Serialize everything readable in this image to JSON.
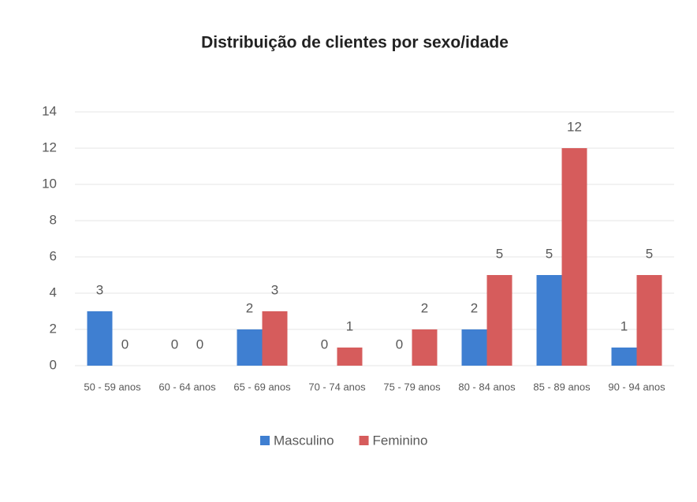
{
  "chart_data": {
    "type": "bar",
    "title": "Distribuição de clientes por sexo/idade",
    "categories": [
      "50 - 59 anos",
      "60 - 64 anos",
      "65 - 69 anos",
      "70 - 74 anos",
      "75 - 79 anos",
      "80 - 84 anos",
      "85 - 89 anos",
      "90 - 94 anos"
    ],
    "series": [
      {
        "name": "Masculino",
        "color": "#3f7fd1",
        "values": [
          3,
          0,
          2,
          0,
          0,
          2,
          5,
          1
        ]
      },
      {
        "name": "Feminino",
        "color": "#d65c5c",
        "values": [
          0,
          0,
          3,
          1,
          2,
          5,
          12,
          5
        ]
      }
    ],
    "ylim": [
      0,
      14
    ],
    "yticks": [
      0,
      2,
      4,
      6,
      8,
      10,
      12,
      14
    ],
    "grid": true,
    "legend": "bottom"
  }
}
